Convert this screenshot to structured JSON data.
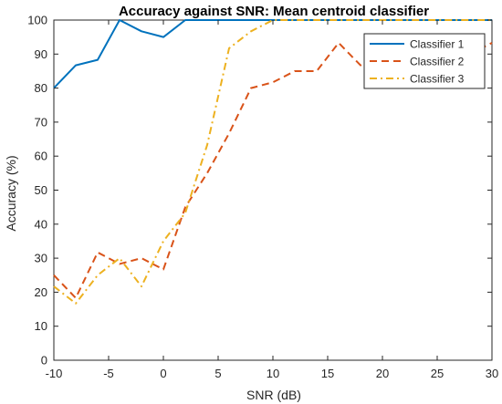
{
  "chart_data": {
    "type": "line",
    "title": "Accuracy against SNR: Mean centroid classifier",
    "xlabel": "SNR (dB)",
    "ylabel": "Accuracy (%)",
    "xlim": [
      -10,
      30
    ],
    "ylim": [
      0,
      100
    ],
    "xticks": [
      "-10",
      "-5",
      "0",
      "5",
      "10",
      "15",
      "20",
      "25",
      "30"
    ],
    "yticks": [
      "0",
      "10",
      "20",
      "30",
      "40",
      "50",
      "60",
      "70",
      "80",
      "90",
      "100"
    ],
    "x": [
      -10,
      -8,
      -6,
      -4,
      -2,
      0,
      2,
      4,
      6,
      8,
      10,
      12,
      14,
      16,
      18,
      20,
      22,
      24,
      26,
      28,
      30
    ],
    "series": [
      {
        "name": "Classifier 1",
        "color": "#0072BD",
        "dash": "solid",
        "values": [
          80,
          86.7,
          88.3,
          100,
          96.7,
          95,
          100,
          100,
          100,
          100,
          100,
          100,
          100,
          100,
          100,
          100,
          100,
          100,
          100,
          100,
          100
        ]
      },
      {
        "name": "Classifier 2",
        "color": "#D95319",
        "dash": "dashed",
        "values": [
          25,
          18.3,
          31.7,
          28.3,
          30,
          26.7,
          45,
          55,
          66.7,
          80,
          81.7,
          85,
          85,
          93.3,
          86.7,
          90,
          88.3,
          90,
          90,
          90,
          93.3
        ]
      },
      {
        "name": "Classifier 3",
        "color": "#EDB120",
        "dash": "dashdot",
        "values": [
          21.7,
          16.7,
          25,
          30,
          21.7,
          35,
          43.3,
          63.3,
          91.7,
          96.7,
          100,
          100,
          100,
          100,
          100,
          100,
          100,
          100,
          100,
          100,
          100
        ]
      }
    ],
    "legend": {
      "placement": "top-right",
      "entries": [
        "Classifier 1",
        "Classifier 2",
        "Classifier 3"
      ]
    },
    "grid": false
  }
}
